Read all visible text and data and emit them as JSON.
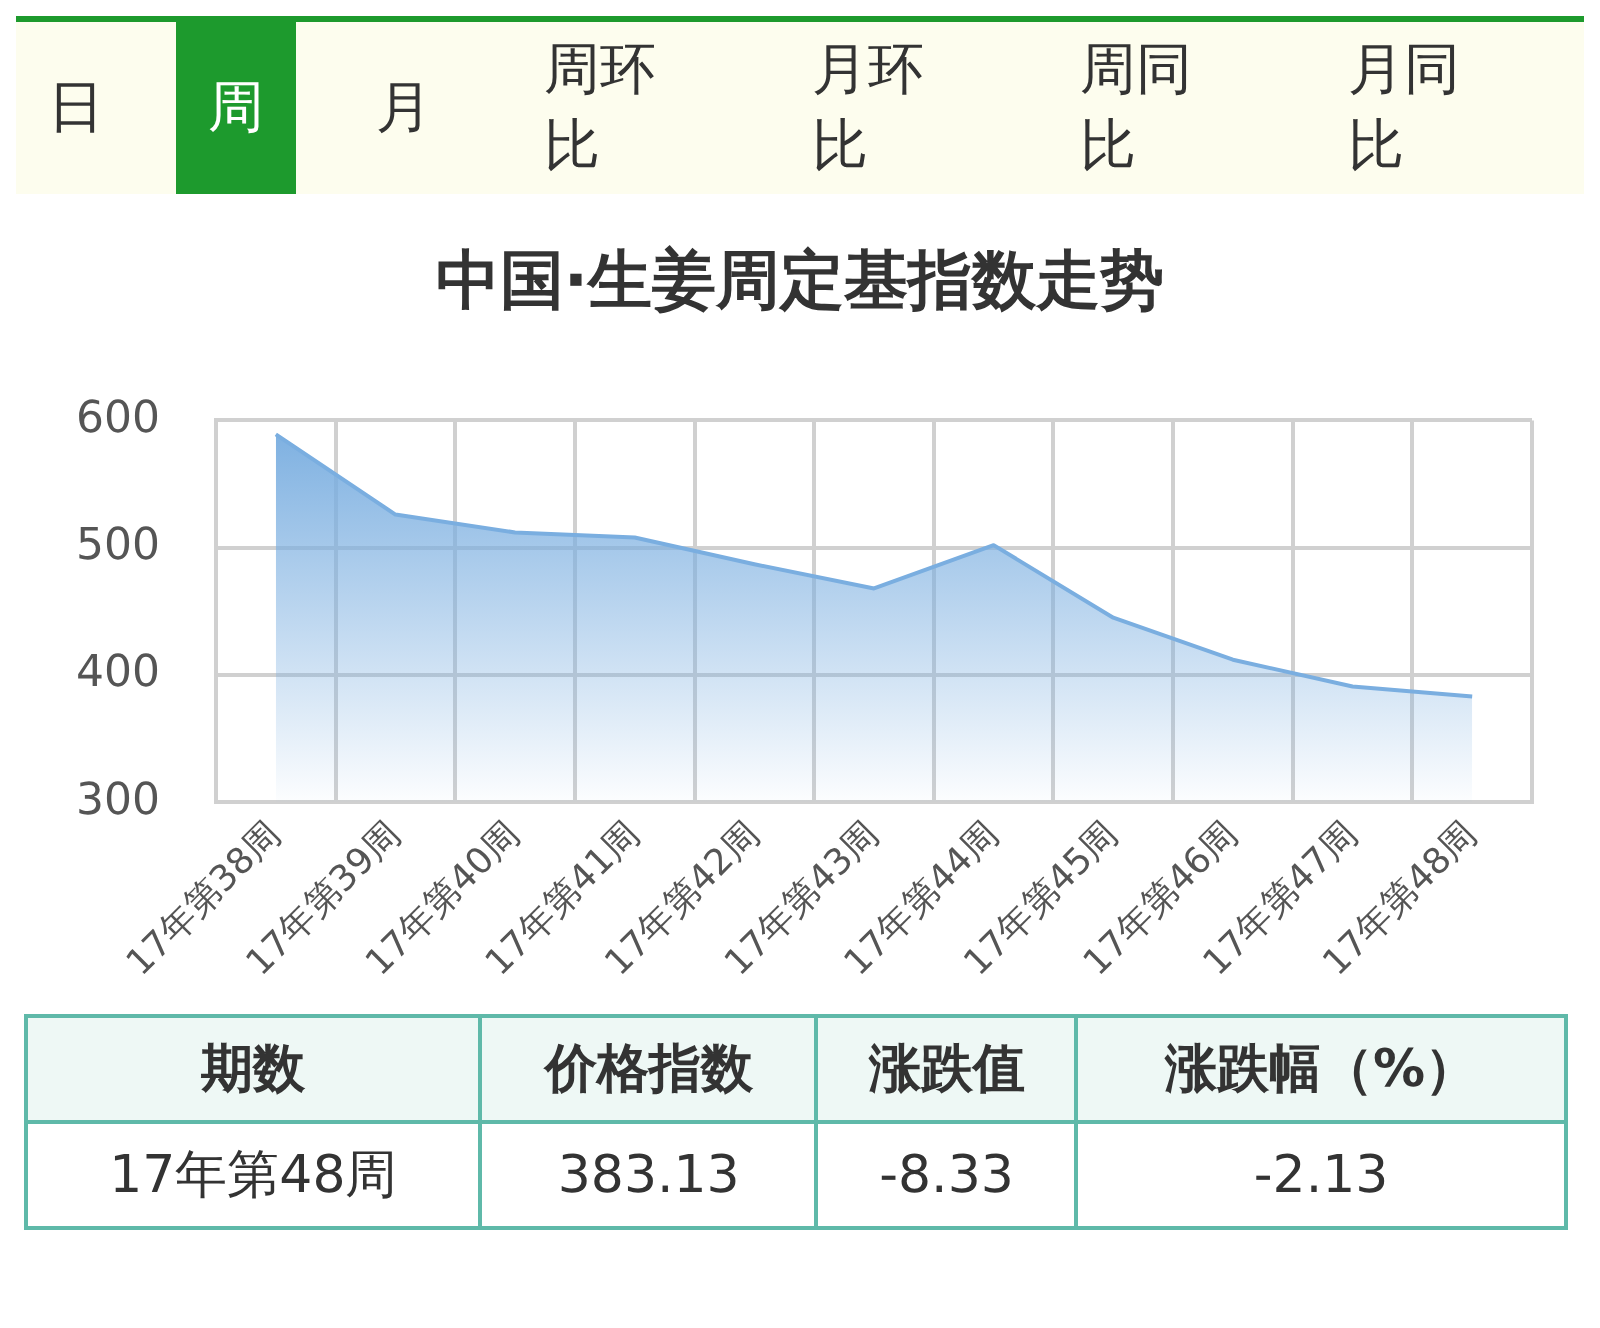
{
  "chart_data": {
    "type": "area",
    "title": "中国·生姜周定基指数走势",
    "categories": [
      "17年第38周",
      "17年第39周",
      "17年第40周",
      "17年第41周",
      "17年第42周",
      "17年第43周",
      "17年第44周",
      "17年第45周",
      "17年第46周",
      "17年第47周",
      "17年第48周"
    ],
    "values": [
      589,
      526,
      512,
      508,
      487,
      468,
      502,
      445,
      412,
      391,
      383.13
    ],
    "color": "#7aaee0",
    "ylim": [
      300,
      600
    ],
    "yticks": [
      300,
      400,
      500,
      600
    ],
    "grid": true,
    "legend": false,
    "marker": "none",
    "annotations": [
      "日",
      "周",
      "月",
      "周环比",
      "月环比",
      "周同比",
      "月同比",
      "期数",
      "价格指数",
      "涨跌值",
      "涨跌幅（%）",
      "17年第48周",
      "383.13",
      "-8.33",
      "-2.13"
    ]
  }
}
